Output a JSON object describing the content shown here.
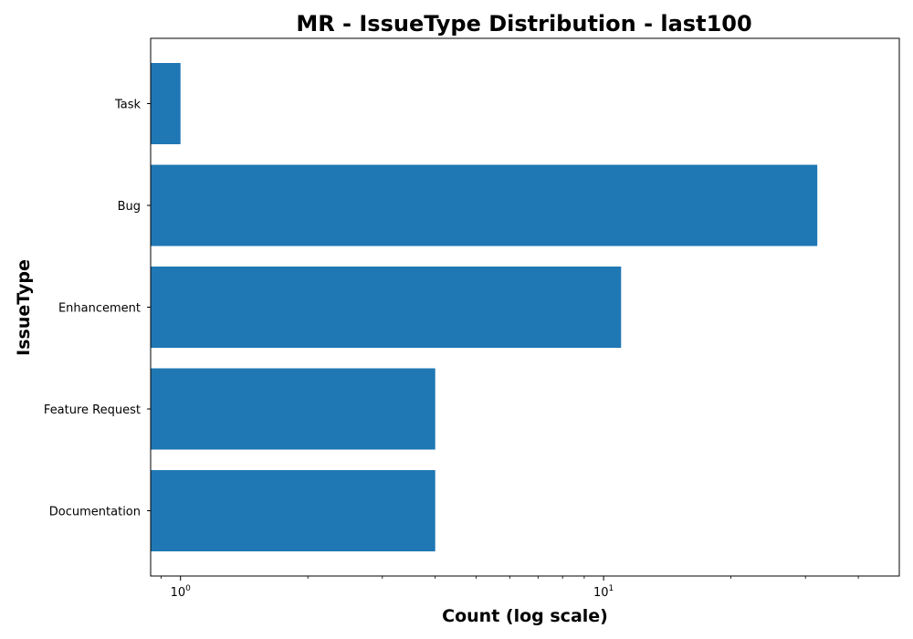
{
  "chart_data": {
    "type": "bar",
    "orientation": "horizontal",
    "title": "MR - IssueType Distribution - last100",
    "xlabel": "Count (log scale)",
    "ylabel": "IssueType",
    "xscale": "log",
    "xlim": [
      0.85,
      50
    ],
    "grid": false,
    "color": "#1f77b4",
    "categories": [
      "Task",
      "Bug",
      "Enhancement",
      "Feature Request",
      "Documentation"
    ],
    "values": [
      1,
      32,
      11,
      4,
      4
    ],
    "x_ticks": [
      {
        "value": 1,
        "base": "10",
        "exp": "0"
      },
      {
        "value": 10,
        "base": "10",
        "exp": "1"
      }
    ]
  }
}
